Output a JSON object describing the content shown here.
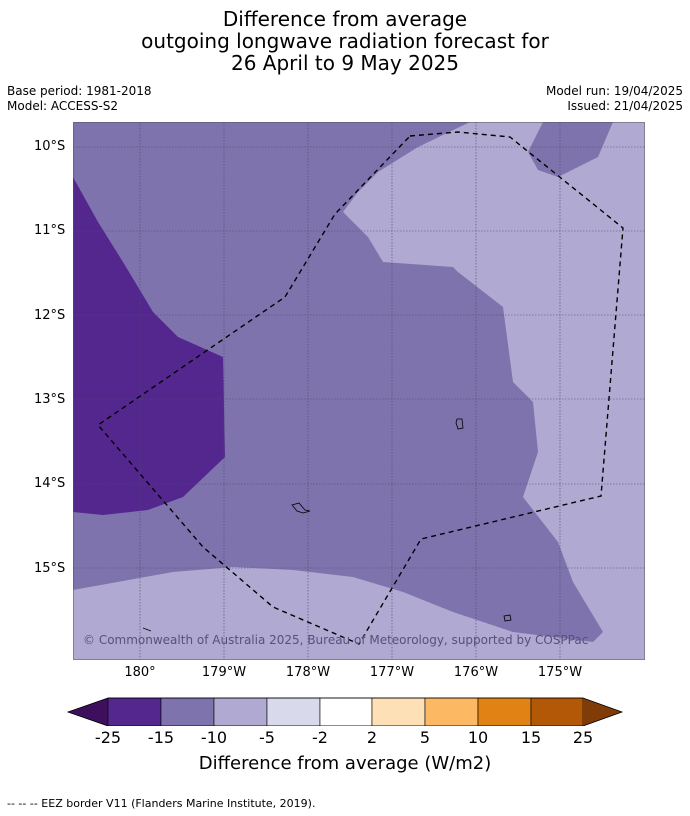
{
  "title": {
    "line1": "Difference from average",
    "line2": "outgoing longwave radiation forecast for",
    "line3": "26 April to 9 May 2025"
  },
  "meta": {
    "base_period": "Base period: 1981-2018",
    "model": "Model: ACCESS-S2",
    "model_run": "Model run: 19/04/2025",
    "issued": "Issued: 21/04/2025"
  },
  "axes": {
    "lat_labels": [
      "10°S",
      "11°S",
      "12°S",
      "13°S",
      "14°S",
      "15°S"
    ],
    "lon_labels": [
      "180°",
      "179°W",
      "178°W",
      "177°W",
      "176°W",
      "175°W"
    ]
  },
  "copyright": "© Commonwealth of Australia 2025, Bureau of Meteorology, supported by COSPPac",
  "colorbar": {
    "ticks": [
      "-25",
      "-15",
      "-10",
      "-5",
      "-2",
      "2",
      "5",
      "10",
      "15",
      "25"
    ],
    "colors": [
      "#3d0f5c",
      "#54278f",
      "#7f73ad",
      "#b0aad2",
      "#d9d9ec",
      "#ffffff",
      "#fee0b6",
      "#fdb863",
      "#e08214",
      "#b35806",
      "#7f3b08"
    ],
    "label": "Difference from average (W/m2)"
  },
  "footer": "--  --  -- EEZ border V11 (Flanders Marine Institute, 2019)."
}
